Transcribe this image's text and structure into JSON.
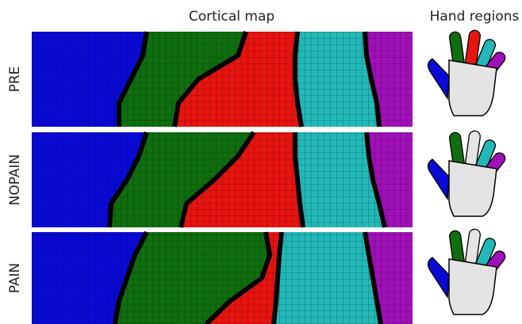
{
  "header": {
    "left": "Cortical map",
    "right": "Hand regions"
  },
  "rows": [
    {
      "label": "PRE"
    },
    {
      "label": "NOPAIN"
    },
    {
      "label": "PAIN"
    }
  ]
}
